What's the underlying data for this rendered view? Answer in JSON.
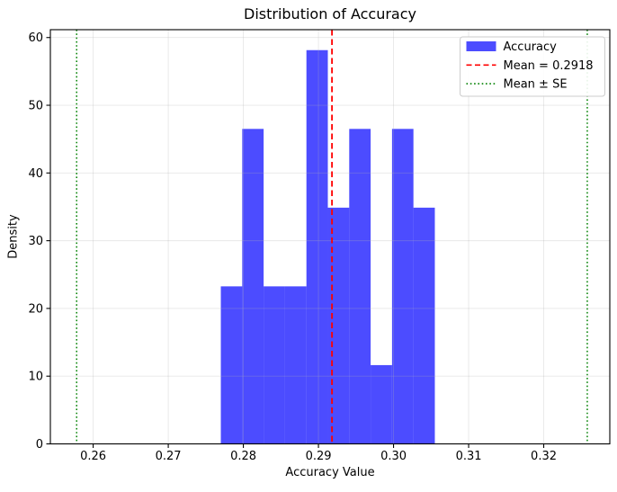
{
  "figure": {
    "background": "#ffffff"
  },
  "chart_data": {
    "type": "histogram",
    "title": "Distribution of Accuracy",
    "xlabel": "Accuracy Value",
    "ylabel": "Density",
    "xlim": [
      0.2543,
      0.3288
    ],
    "ylim": [
      0,
      61.16
    ],
    "xticks": [
      0.26,
      0.27,
      0.28,
      0.29,
      0.3,
      0.31,
      0.32
    ],
    "xtick_labels": [
      "0.26",
      "0.27",
      "0.28",
      "0.29",
      "0.30",
      "0.31",
      "0.32"
    ],
    "yticks": [
      0,
      10,
      20,
      30,
      40,
      50,
      60
    ],
    "ytick_labels": [
      "0",
      "10",
      "20",
      "30",
      "40",
      "50",
      "60"
    ],
    "grid": {
      "visible": true,
      "color": "#b0b0b0",
      "opacity": 0.3
    },
    "histogram": {
      "series_label": "Accuracy",
      "bin_start": 0.277,
      "bin_width": 0.00285,
      "densities": [
        23.26,
        46.51,
        23.26,
        23.26,
        58.14,
        34.88,
        46.51,
        11.63,
        46.51,
        34.88
      ],
      "color": "#0000ff",
      "opacity": 0.7
    },
    "mean_line": {
      "value": 0.2918,
      "color": "#ff0000",
      "style": "dashed"
    },
    "se_lines": {
      "values": [
        0.2578,
        0.3258
      ],
      "color": "#008000",
      "style": "dotted"
    },
    "legend": {
      "position": "upper-right",
      "entries": [
        {
          "label": "Accuracy",
          "marker": "patch",
          "color": "#0000ff",
          "opacity": 0.7
        },
        {
          "label": "Mean = 0.2918",
          "marker": "dashed-line",
          "color": "#ff0000"
        },
        {
          "label": "Mean ± SE",
          "marker": "dotted-line",
          "color": "#008000"
        }
      ]
    }
  }
}
